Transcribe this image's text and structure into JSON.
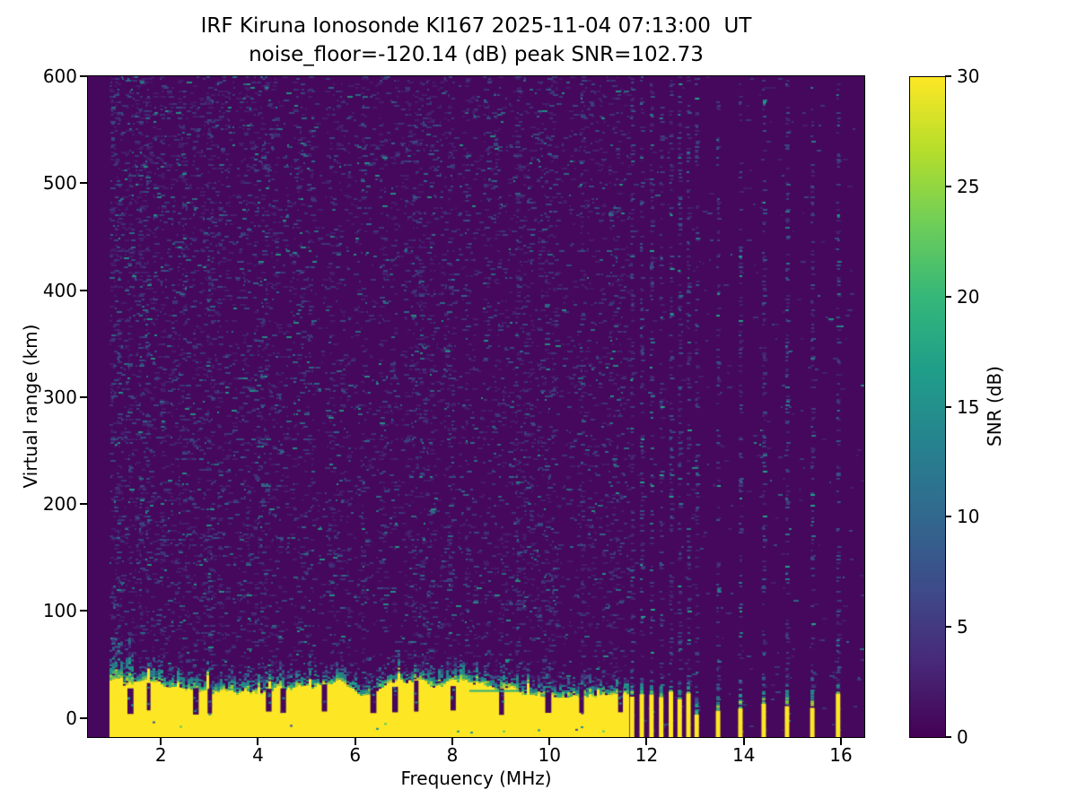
{
  "chart_data": {
    "type": "heatmap",
    "title": "IRF Kiruna Ionosonde KI167 2025-11-04 07:13:00  UT",
    "subtitle": "noise_floor=-120.14 (dB) peak SNR=102.73",
    "xlabel": "Frequency (MHz)",
    "ylabel": "Virtual range (km)",
    "colorbar_label": "SNR (dB)",
    "xlim": [
      0.5,
      16.48
    ],
    "ylim": [
      -18,
      600
    ],
    "x_ticks": [
      2,
      4,
      6,
      8,
      10,
      12,
      14,
      16
    ],
    "y_ticks": [
      0,
      100,
      200,
      300,
      400,
      500,
      600
    ],
    "colorbar_ticks": [
      0,
      5,
      10,
      15,
      20,
      25,
      30
    ],
    "colorbar_range": [
      0,
      30
    ],
    "colormap": "viridis",
    "grid": false,
    "legend": "colorbar-right",
    "noise_floor_db": -120.14,
    "peak_snr_db": 102.73,
    "data_min_freq_mhz": 0.95,
    "seed": 167,
    "viridis_stops": [
      "#440154",
      "#482878",
      "#3e4a89",
      "#31688e",
      "#26828e",
      "#1f9e89",
      "#35b779",
      "#6ece58",
      "#b5de2b",
      "#fde725"
    ],
    "palette": {
      "plot_background": "#45085c",
      "saturated": "#fde725",
      "greens": [
        "#aadc32",
        "#5ec962",
        "#35b779"
      ],
      "teals": [
        "#21918c",
        "#26828e",
        "#1f9e89"
      ],
      "blues": [
        "#31688e",
        "#3b528b",
        "#472d7b"
      ],
      "noise": [
        [
          "#46307e",
          0.55
        ],
        [
          "#3b528b",
          0.6
        ],
        [
          "#33638d",
          0.7
        ],
        [
          "#26828e",
          0.78
        ],
        [
          "#1fa187",
          0.85
        ]
      ]
    },
    "ground_clutter": {
      "band_freq_range_mhz": [
        0.95,
        11.62
      ],
      "band_top_km_mean": 26,
      "transition_top_km_max": 50,
      "notch_freqs_mhz": [
        1.35,
        1.75,
        2.7,
        3.0,
        4.2,
        4.5,
        5.35,
        6.35,
        6.8,
        7.25,
        8.0,
        9.0,
        9.95,
        10.65,
        11.45
      ],
      "interference_line": {
        "freq_range_mhz": [
          8.35,
          9.4
        ],
        "range_km": 26
      },
      "stripe_freqs_mhz": [
        11.7,
        11.9,
        12.1,
        12.3,
        12.5,
        12.68,
        12.86,
        13.03,
        13.47,
        13.93,
        14.41,
        14.89,
        15.41,
        15.94
      ],
      "sparse_stripe_min_freq_mhz": 13.2
    }
  }
}
